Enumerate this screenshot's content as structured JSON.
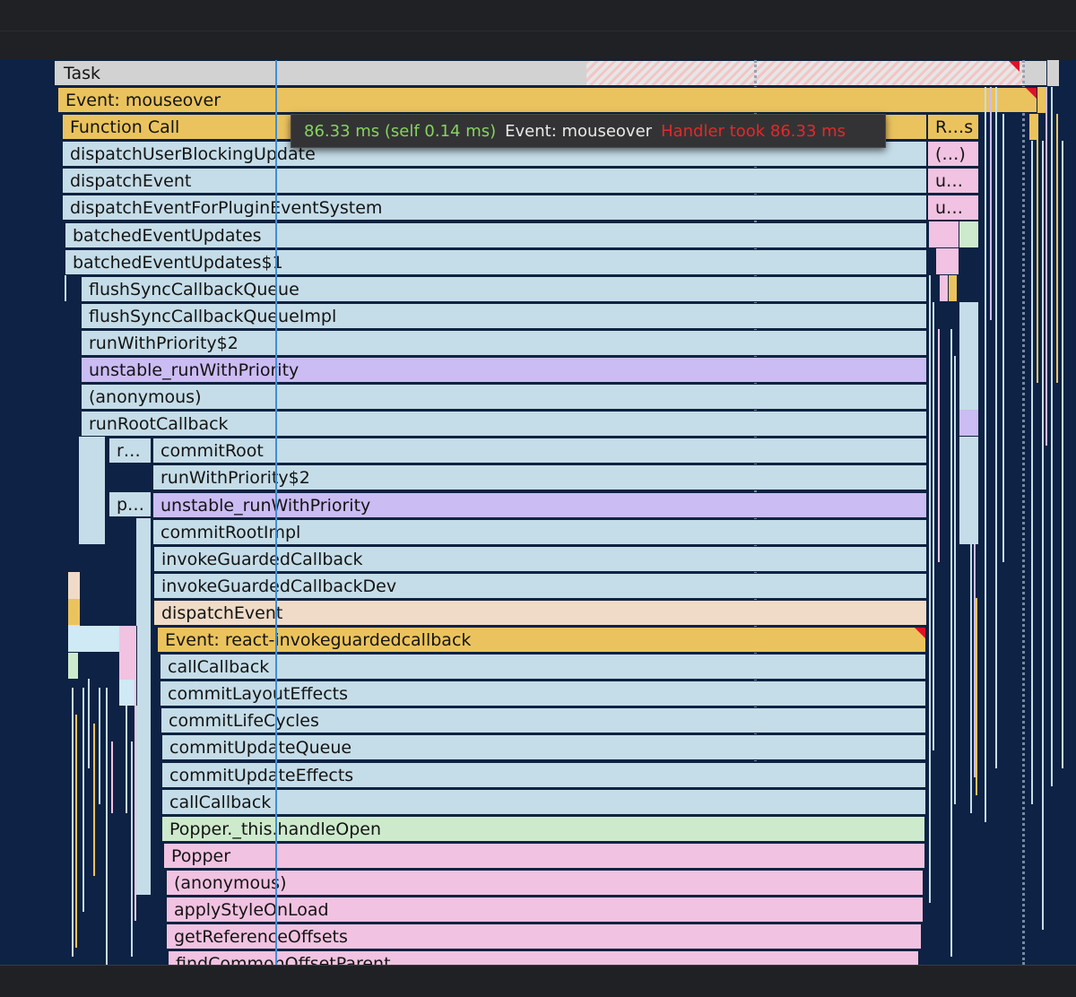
{
  "flame_chart": {
    "task_label": "Task",
    "rows": [
      {
        "label": "Event: mouseover",
        "color": "yellow"
      },
      {
        "label": "Function Call",
        "color": "yellow"
      },
      {
        "label": "dispatchUserBlockingUpdate",
        "color": "blue"
      },
      {
        "label": "dispatchEvent",
        "color": "blue"
      },
      {
        "label": "dispatchEventForPluginEventSystem",
        "color": "blue"
      },
      {
        "label": "batchedEventUpdates",
        "color": "blue"
      },
      {
        "label": "batchedEventUpdates$1",
        "color": "blue"
      },
      {
        "label": "flushSyncCallbackQueue",
        "color": "blue"
      },
      {
        "label": "flushSyncCallbackQueueImpl",
        "color": "blue"
      },
      {
        "label": "runWithPriority$2",
        "color": "blue"
      },
      {
        "label": "unstable_runWithPriority",
        "color": "purple"
      },
      {
        "label": "(anonymous)",
        "color": "blue"
      },
      {
        "label": "runRootCallback",
        "color": "blue"
      },
      {
        "label": "commitRoot",
        "color": "blue"
      },
      {
        "label": "runWithPriority$2",
        "color": "blue"
      },
      {
        "label": "unstable_runWithPriority",
        "color": "purple"
      },
      {
        "label": "commitRootImpl",
        "color": "blue"
      },
      {
        "label": "invokeGuardedCallback",
        "color": "blue"
      },
      {
        "label": "invokeGuardedCallbackDev",
        "color": "blue"
      },
      {
        "label": "dispatchEvent",
        "color": "peach"
      },
      {
        "label": "Event: react-invokeguardedcallback",
        "color": "yellow"
      },
      {
        "label": "callCallback",
        "color": "blue"
      },
      {
        "label": "commitLayoutEffects",
        "color": "blue"
      },
      {
        "label": "commitLifeCycles",
        "color": "blue"
      },
      {
        "label": "commitUpdateQueue",
        "color": "blue"
      },
      {
        "label": "commitUpdateEffects",
        "color": "blue"
      },
      {
        "label": "callCallback",
        "color": "blue"
      },
      {
        "label": "Popper._this.handleOpen",
        "color": "green"
      },
      {
        "label": "Popper",
        "color": "pink"
      },
      {
        "label": "(anonymous)",
        "color": "pink"
      },
      {
        "label": "applyStyleOnLoad",
        "color": "pink"
      },
      {
        "label": "getReferenceOffsets",
        "color": "pink"
      },
      {
        "label": "findCommonOffsetParent",
        "color": "pink"
      }
    ],
    "small_labels": {
      "r_short": "r…",
      "p_short": "p…",
      "right_rs": "R…s",
      "right_paren": "(…)",
      "right_u1": "u…",
      "right_u2": "u…"
    }
  },
  "tooltip": {
    "time": "86.33 ms (self 0.14 ms)",
    "event": "Event: mouseover",
    "warning": "Handler took 86.33 ms"
  },
  "colors": {
    "background": "#0d2244",
    "blue": "#c5dde8",
    "yellow": "#ebc35e",
    "purple": "#cbbcf3",
    "pink": "#f1c2e1",
    "green": "#cdeacd",
    "peach": "#efdbc7",
    "task": "#d2d2d2",
    "warning_red": "#e52828",
    "time_green": "#86d45e",
    "cursor": "#3f8fd4"
  }
}
